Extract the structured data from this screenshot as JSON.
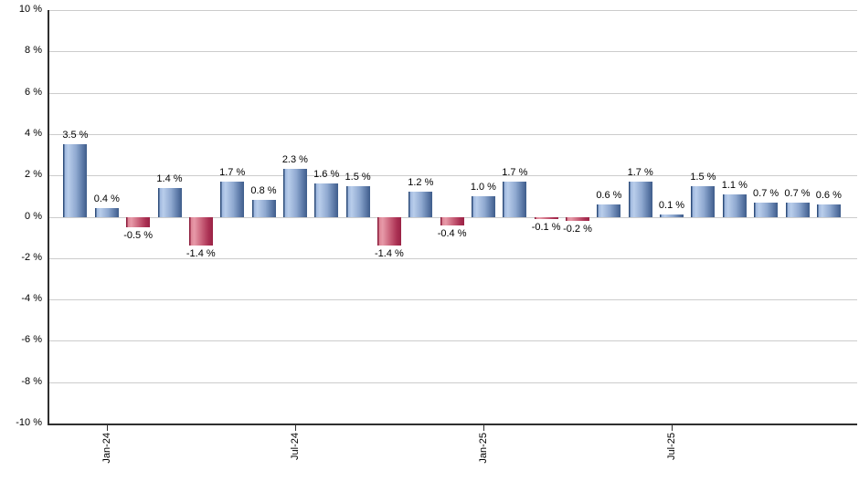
{
  "chart_data": {
    "type": "bar",
    "values": [
      3.5,
      0.4,
      -0.5,
      1.4,
      -1.4,
      1.7,
      0.8,
      2.3,
      1.6,
      1.5,
      -1.4,
      1.2,
      -0.4,
      1.0,
      1.7,
      -0.1,
      -0.2,
      0.6,
      1.7,
      0.1,
      1.5,
      1.1,
      0.7,
      0.7,
      0.6
    ],
    "bar_labels": [
      "3.5 %",
      "0.4 %",
      "-0.5 %",
      "1.4 %",
      "-1.4 %",
      "1.7 %",
      "0.8 %",
      "2.3 %",
      "1.6 %",
      "1.5 %",
      "-1.4 %",
      "1.2 %",
      "-0.4 %",
      "1.0 %",
      "1.7 %",
      "-0.1 %",
      "-0.2 %",
      "0.6 %",
      "1.7 %",
      "0.1 %",
      "1.5 %",
      "1.1 %",
      "0.7 %",
      "0.7 %",
      "0.6 %"
    ],
    "x_ticks": [
      {
        "label": "Jan-24",
        "bar_index": 1
      },
      {
        "label": "Jul-24",
        "bar_index": 7
      },
      {
        "label": "Jan-25",
        "bar_index": 13
      },
      {
        "label": "Jul-25",
        "bar_index": 19
      }
    ],
    "y_ticks": [
      {
        "label": "10 %",
        "value": 10
      },
      {
        "label": "8 %",
        "value": 8
      },
      {
        "label": "6 %",
        "value": 6
      },
      {
        "label": "4 %",
        "value": 4
      },
      {
        "label": "2 %",
        "value": 2
      },
      {
        "label": "0 %",
        "value": 0
      },
      {
        "label": "-2 %",
        "value": -2
      },
      {
        "label": "-4 %",
        "value": -4
      },
      {
        "label": "-6 %",
        "value": -6
      },
      {
        "label": "-8 %",
        "value": -8
      },
      {
        "label": "-10 %",
        "value": -10
      }
    ],
    "ylim": [
      -10,
      10
    ],
    "grid": true,
    "legend": false,
    "colors": {
      "positive_light": "#b9cdeb",
      "positive_dark": "#3f5d8b",
      "positive_edge": "#2e4d7b",
      "negative_light": "#e79aa8",
      "negative_dark": "#9a2345",
      "negative_edge": "#8c1c3c",
      "gridline": "#cccccc",
      "axis": "#2f2f2f",
      "text": "#000000"
    }
  }
}
